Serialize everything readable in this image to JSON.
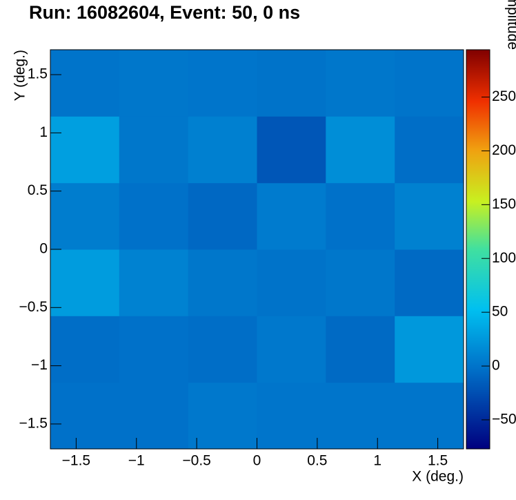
{
  "chart_data": {
    "type": "heatmap",
    "title": "Run: 16082604, Event: 50, 0 ns",
    "x_label": "X (deg.)",
    "y_label": "Y (deg.)",
    "z_label": "Amplitude",
    "xbins": [
      -1.714,
      -1.143,
      -0.571,
      0,
      0.571,
      1.143,
      1.714
    ],
    "ybins": [
      -1.714,
      -1.143,
      -0.571,
      0,
      0.571,
      1.143,
      1.714
    ],
    "z": [
      [
        -2,
        -2,
        3,
        1,
        1,
        1
      ],
      [
        -4,
        -2,
        -4,
        3,
        -7,
        25
      ],
      [
        28,
        10,
        2,
        -1,
        2,
        -7
      ],
      [
        6,
        -2,
        -8,
        5,
        -2,
        9
      ],
      [
        30,
        2,
        8,
        -20,
        18,
        -4
      ],
      [
        0,
        2,
        1,
        -1,
        2,
        0
      ]
    ],
    "xlim": [
      -1.714,
      1.714
    ],
    "ylim": [
      -1.714,
      1.714
    ],
    "zlim": [
      -77,
      294
    ],
    "xticks": [
      {
        "value": -1.5,
        "label": "−1.5"
      },
      {
        "value": -1,
        "label": "−1"
      },
      {
        "value": -0.5,
        "label": "−0.5"
      },
      0,
      0.5,
      1,
      1.5
    ],
    "yticks": [
      {
        "value": -1.5,
        "label": "−1.5"
      },
      {
        "value": -1,
        "label": "−1"
      },
      {
        "value": -0.5,
        "label": "−0.5"
      },
      0,
      0.5,
      1,
      1.5
    ],
    "zticks": [
      {
        "value": -50,
        "label": "−50"
      },
      0,
      50,
      100,
      150,
      200,
      250
    ],
    "colorscale": [
      [
        0,
        "#00007f"
      ],
      [
        0.2,
        "#0070c8"
      ],
      [
        0.35,
        "#00c0f0"
      ],
      [
        0.5,
        "#40e0a0"
      ],
      [
        0.62,
        "#c8f020"
      ],
      [
        0.75,
        "#f0a010"
      ],
      [
        0.87,
        "#f03000"
      ],
      [
        1,
        "#800000"
      ]
    ]
  }
}
